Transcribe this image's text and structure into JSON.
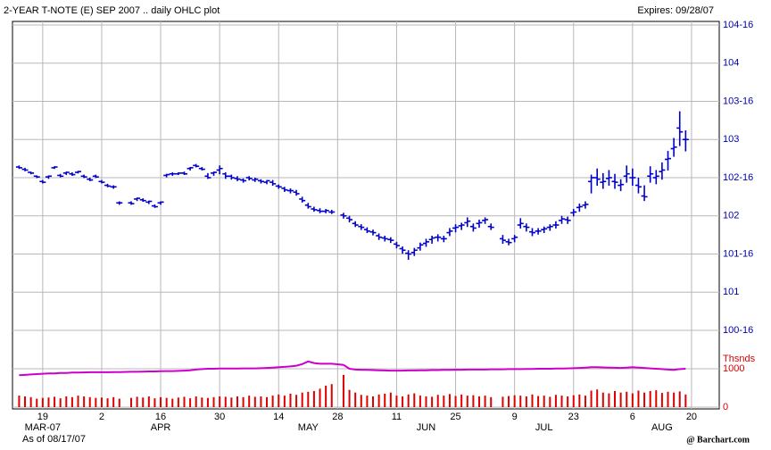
{
  "chart_data": {
    "type": "ohlc",
    "title": "2-YEAR T-NOTE (E) SEP 2007 .. daily OHLC plot",
    "expires": "Expires: 09/28/07",
    "as_of": "As of 08/17/07",
    "source": "@ Barchart.com",
    "color": "#0000cc",
    "grid": true,
    "ylim": [
      100.5,
      104.5
    ],
    "yticks": [
      {
        "value": 100.5,
        "label": "100-16"
      },
      101,
      {
        "value": 101.5,
        "label": "101-16"
      },
      102,
      {
        "value": 102.5,
        "label": "102-16"
      },
      103,
      {
        "value": 103.5,
        "label": "103-16"
      },
      104,
      {
        "value": 104.5,
        "label": "104-16"
      }
    ],
    "xticks": [
      {
        "value": "2007-03-19",
        "label": "19"
      },
      {
        "value": "2007-04-02",
        "label": "2"
      },
      {
        "value": "2007-04-16",
        "label": "16"
      },
      {
        "value": "2007-04-30",
        "label": "30"
      },
      {
        "value": "2007-05-14",
        "label": "14"
      },
      {
        "value": "2007-05-28",
        "label": "28"
      },
      {
        "value": "2007-06-11",
        "label": "11"
      },
      {
        "value": "2007-06-25",
        "label": "25"
      },
      {
        "value": "2007-07-09",
        "label": "9"
      },
      {
        "value": "2007-07-23",
        "label": "23"
      },
      {
        "value": "2007-08-06",
        "label": "6"
      },
      {
        "value": "2007-08-20",
        "label": "20"
      }
    ],
    "month_labels": [
      {
        "value": "2007-03-19",
        "label": "MAR-07"
      },
      {
        "value": "2007-04-16",
        "label": "APR"
      },
      {
        "value": "2007-05-21",
        "label": "MAY"
      },
      {
        "value": "2007-06-18",
        "label": "JUN"
      },
      {
        "value": "2007-07-16",
        "label": "JUL"
      },
      {
        "value": "2007-08-13",
        "label": "AUG"
      }
    ],
    "categories": [
      "2007-03-13",
      "2007-03-14",
      "2007-03-15",
      "2007-03-16",
      "2007-03-19",
      "2007-03-20",
      "2007-03-21",
      "2007-03-22",
      "2007-03-23",
      "2007-03-26",
      "2007-03-27",
      "2007-03-28",
      "2007-03-29",
      "2007-03-30",
      "2007-04-02",
      "2007-04-03",
      "2007-04-04",
      "2007-04-05",
      "2007-04-09",
      "2007-04-10",
      "2007-04-11",
      "2007-04-12",
      "2007-04-13",
      "2007-04-16",
      "2007-04-17",
      "2007-04-18",
      "2007-04-19",
      "2007-04-20",
      "2007-04-23",
      "2007-04-24",
      "2007-04-25",
      "2007-04-26",
      "2007-04-27",
      "2007-04-30",
      "2007-05-01",
      "2007-05-02",
      "2007-05-03",
      "2007-05-04",
      "2007-05-07",
      "2007-05-08",
      "2007-05-09",
      "2007-05-10",
      "2007-05-11",
      "2007-05-14",
      "2007-05-15",
      "2007-05-16",
      "2007-05-17",
      "2007-05-18",
      "2007-05-21",
      "2007-05-22",
      "2007-05-23",
      "2007-05-24",
      "2007-05-25",
      "2007-05-29",
      "2007-05-30",
      "2007-05-31",
      "2007-06-01",
      "2007-06-04",
      "2007-06-05",
      "2007-06-06",
      "2007-06-07",
      "2007-06-08",
      "2007-06-11",
      "2007-06-12",
      "2007-06-13",
      "2007-06-14",
      "2007-06-15",
      "2007-06-18",
      "2007-06-19",
      "2007-06-20",
      "2007-06-21",
      "2007-06-22",
      "2007-06-25",
      "2007-06-26",
      "2007-06-27",
      "2007-06-28",
      "2007-06-29",
      "2007-07-02",
      "2007-07-03",
      "2007-07-05",
      "2007-07-06",
      "2007-07-09",
      "2007-07-10",
      "2007-07-11",
      "2007-07-12",
      "2007-07-13",
      "2007-07-16",
      "2007-07-17",
      "2007-07-18",
      "2007-07-19",
      "2007-07-20",
      "2007-07-23",
      "2007-07-24",
      "2007-07-25",
      "2007-07-26",
      "2007-07-27",
      "2007-07-30",
      "2007-07-31",
      "2007-08-01",
      "2007-08-02",
      "2007-08-03",
      "2007-08-06",
      "2007-08-07",
      "2007-08-08",
      "2007-08-09",
      "2007-08-10",
      "2007-08-13",
      "2007-08-14",
      "2007-08-15",
      "2007-08-16",
      "2007-08-17"
    ],
    "ohlc": [
      [
        102.64,
        102.66,
        102.62,
        102.63
      ],
      [
        102.61,
        102.63,
        102.59,
        102.6
      ],
      [
        102.57,
        102.58,
        102.55,
        102.56
      ],
      [
        102.52,
        102.53,
        102.5,
        102.51
      ],
      [
        102.45,
        102.47,
        102.43,
        102.44
      ],
      [
        102.51,
        102.53,
        102.49,
        102.52
      ],
      [
        102.63,
        102.65,
        102.62,
        102.64
      ],
      [
        102.53,
        102.55,
        102.51,
        102.52
      ],
      [
        102.56,
        102.58,
        102.54,
        102.57
      ],
      [
        102.55,
        102.57,
        102.53,
        102.54
      ],
      [
        102.57,
        102.59,
        102.56,
        102.58
      ],
      [
        102.52,
        102.54,
        102.5,
        102.51
      ],
      [
        102.48,
        102.5,
        102.46,
        102.47
      ],
      [
        102.52,
        102.54,
        102.5,
        102.51
      ],
      [
        102.45,
        102.47,
        102.43,
        102.44
      ],
      [
        102.4,
        102.42,
        102.38,
        102.39
      ],
      [
        102.38,
        102.4,
        102.36,
        102.38
      ],
      [
        102.17,
        102.19,
        102.15,
        102.17
      ],
      [
        102.17,
        102.19,
        102.15,
        102.16
      ],
      [
        102.22,
        102.24,
        102.2,
        102.23
      ],
      [
        102.21,
        102.23,
        102.19,
        102.2
      ],
      [
        102.18,
        102.2,
        102.16,
        102.19
      ],
      [
        102.13,
        102.15,
        102.11,
        102.12
      ],
      [
        102.17,
        102.19,
        102.15,
        102.18
      ],
      [
        102.53,
        102.55,
        102.51,
        102.54
      ],
      [
        102.55,
        102.57,
        102.53,
        102.55
      ],
      [
        102.55,
        102.57,
        102.54,
        102.56
      ],
      [
        102.56,
        102.58,
        102.54,
        102.55
      ],
      [
        102.62,
        102.64,
        102.6,
        102.63
      ],
      [
        102.66,
        102.68,
        102.64,
        102.65
      ],
      [
        102.62,
        102.64,
        102.6,
        102.61
      ],
      [
        102.52,
        102.56,
        102.49,
        102.5
      ],
      [
        102.56,
        102.58,
        102.53,
        102.57
      ],
      [
        102.6,
        102.66,
        102.55,
        102.62
      ],
      [
        102.55,
        102.57,
        102.49,
        102.52
      ],
      [
        102.52,
        102.54,
        102.48,
        102.5
      ],
      [
        102.49,
        102.52,
        102.46,
        102.48
      ],
      [
        102.47,
        102.49,
        102.44,
        102.46
      ],
      [
        102.5,
        102.52,
        102.47,
        102.49
      ],
      [
        102.47,
        102.5,
        102.45,
        102.48
      ],
      [
        102.46,
        102.48,
        102.43,
        102.45
      ],
      [
        102.44,
        102.47,
        102.42,
        102.46
      ],
      [
        102.44,
        102.47,
        102.4,
        102.42
      ],
      [
        102.39,
        102.41,
        102.36,
        102.38
      ],
      [
        102.36,
        102.38,
        102.32,
        102.34
      ],
      [
        102.33,
        102.36,
        102.3,
        102.33
      ],
      [
        102.31,
        102.34,
        102.27,
        102.29
      ],
      [
        102.22,
        102.25,
        102.18,
        102.2
      ],
      [
        102.14,
        102.17,
        102.1,
        102.12
      ],
      [
        102.09,
        102.12,
        102.06,
        102.08
      ],
      [
        102.07,
        102.1,
        102.04,
        102.06
      ],
      [
        102.06,
        102.09,
        102.04,
        102.07
      ],
      [
        102.05,
        102.08,
        102.03,
        102.05
      ],
      [
        102.01,
        102.04,
        101.97,
        102.0
      ],
      [
        101.97,
        102.0,
        101.92,
        101.95
      ],
      [
        101.9,
        101.93,
        101.86,
        101.88
      ],
      [
        101.86,
        101.89,
        101.82,
        101.85
      ],
      [
        101.82,
        101.85,
        101.78,
        101.8
      ],
      [
        101.79,
        101.82,
        101.75,
        101.78
      ],
      [
        101.74,
        101.77,
        101.69,
        101.72
      ],
      [
        101.71,
        101.74,
        101.67,
        101.7
      ],
      [
        101.69,
        101.72,
        101.65,
        101.68
      ],
      [
        101.63,
        101.66,
        101.58,
        101.61
      ],
      [
        101.57,
        101.6,
        101.51,
        101.55
      ],
      [
        101.51,
        101.55,
        101.43,
        101.5
      ],
      [
        101.52,
        101.58,
        101.48,
        101.55
      ],
      [
        101.58,
        101.65,
        101.55,
        101.62
      ],
      [
        101.64,
        101.7,
        101.6,
        101.66
      ],
      [
        101.69,
        101.74,
        101.64,
        101.71
      ],
      [
        101.72,
        101.76,
        101.67,
        101.72
      ],
      [
        101.7,
        101.74,
        101.66,
        101.7
      ],
      [
        101.78,
        101.84,
        101.74,
        101.8
      ],
      [
        101.84,
        101.89,
        101.79,
        101.85
      ],
      [
        101.87,
        101.91,
        101.82,
        101.88
      ],
      [
        101.91,
        101.98,
        101.86,
        101.93
      ],
      [
        101.86,
        101.9,
        101.8,
        101.84
      ],
      [
        101.9,
        101.95,
        101.85,
        101.91
      ],
      [
        101.94,
        101.98,
        101.9,
        101.95
      ],
      [
        101.86,
        101.9,
        101.82,
        101.85
      ],
      [
        101.7,
        101.75,
        101.64,
        101.68
      ],
      [
        101.66,
        101.7,
        101.62,
        101.65
      ],
      [
        101.7,
        101.75,
        101.66,
        101.72
      ],
      [
        101.88,
        101.97,
        101.84,
        101.9
      ],
      [
        101.86,
        101.9,
        101.8,
        101.85
      ],
      [
        101.79,
        101.84,
        101.74,
        101.78
      ],
      [
        101.8,
        101.84,
        101.76,
        101.8
      ],
      [
        101.82,
        101.86,
        101.78,
        101.83
      ],
      [
        101.85,
        101.89,
        101.81,
        101.86
      ],
      [
        101.88,
        101.93,
        101.84,
        101.88
      ],
      [
        101.94,
        102.0,
        101.9,
        101.96
      ],
      [
        101.95,
        101.99,
        101.9,
        101.94
      ],
      [
        102.04,
        102.09,
        102.0,
        102.05
      ],
      [
        102.11,
        102.16,
        102.06,
        102.12
      ],
      [
        102.14,
        102.19,
        102.1,
        102.15
      ],
      [
        102.45,
        102.54,
        102.3,
        102.5
      ],
      [
        102.5,
        102.62,
        102.4,
        102.48
      ],
      [
        102.44,
        102.56,
        102.36,
        102.45
      ],
      [
        102.49,
        102.6,
        102.4,
        102.5
      ],
      [
        102.45,
        102.55,
        102.36,
        102.44
      ],
      [
        102.4,
        102.48,
        102.33,
        102.41
      ],
      [
        102.52,
        102.66,
        102.44,
        102.55
      ],
      [
        102.5,
        102.62,
        102.4,
        102.5
      ],
      [
        102.4,
        102.5,
        102.3,
        102.38
      ],
      [
        102.26,
        102.4,
        102.2,
        102.25
      ],
      [
        102.52,
        102.65,
        102.44,
        102.55
      ],
      [
        102.5,
        102.6,
        102.42,
        102.52
      ],
      [
        102.58,
        102.7,
        102.48,
        102.6
      ],
      [
        102.74,
        102.85,
        102.6,
        102.75
      ],
      [
        102.88,
        103.02,
        102.78,
        102.9
      ],
      [
        103.15,
        103.37,
        102.92,
        103.1
      ],
      [
        103.0,
        103.12,
        102.85,
        103.0
      ]
    ],
    "volume": {
      "label": "Thsnds",
      "color": "#dd0000",
      "ylim": [
        0,
        2000
      ],
      "yticks": [
        0,
        1000
      ],
      "values": [
        300,
        280,
        260,
        220,
        240,
        250,
        270,
        230,
        280,
        260,
        300,
        280,
        260,
        240,
        250,
        230,
        260,
        220,
        240,
        270,
        250,
        280,
        230,
        260,
        240,
        220,
        250,
        270,
        230,
        280,
        250,
        240,
        260,
        280,
        270,
        250,
        280,
        260,
        300,
        270,
        280,
        260,
        300,
        330,
        300,
        350,
        320,
        380,
        400,
        420,
        480,
        560,
        600,
        840,
        450,
        380,
        320,
        300,
        280,
        330,
        350,
        380,
        300,
        280,
        330,
        360,
        300,
        280,
        270,
        320,
        300,
        340,
        290,
        330,
        300,
        310,
        280,
        300,
        260,
        270,
        290,
        310,
        300,
        280,
        330,
        290,
        300,
        270,
        320,
        300,
        280,
        310,
        330,
        300,
        430,
        460,
        380,
        360,
        420,
        380,
        400,
        360,
        430,
        380,
        420,
        440,
        370,
        400,
        380,
        410,
        330
      ]
    },
    "open_interest": {
      "color": "#cc00cc",
      "values": [
        830,
        840,
        850,
        860,
        870,
        880,
        880,
        890,
        890,
        900,
        900,
        905,
        910,
        910,
        910,
        910,
        915,
        915,
        920,
        920,
        925,
        930,
        930,
        935,
        940,
        940,
        945,
        950,
        960,
        980,
        990,
        1000,
        1000,
        1005,
        1005,
        1005,
        1005,
        1010,
        1010,
        1010,
        1015,
        1020,
        1030,
        1040,
        1050,
        1060,
        1080,
        1120,
        1190,
        1150,
        1130,
        1130,
        1130,
        1100,
        1000,
        980,
        975,
        970,
        965,
        960,
        955,
        950,
        950,
        950,
        955,
        955,
        960,
        960,
        965,
        965,
        970,
        970,
        975,
        975,
        980,
        980,
        980,
        980,
        985,
        985,
        990,
        990,
        990,
        995,
        995,
        1000,
        1000,
        1000,
        1005,
        1005,
        1010,
        1015,
        1020,
        1030,
        1040,
        1040,
        1035,
        1030,
        1025,
        1020,
        1030,
        1040,
        1030,
        1020,
        1010,
        1000,
        990,
        980,
        970,
        990,
        1000
      ]
    }
  }
}
